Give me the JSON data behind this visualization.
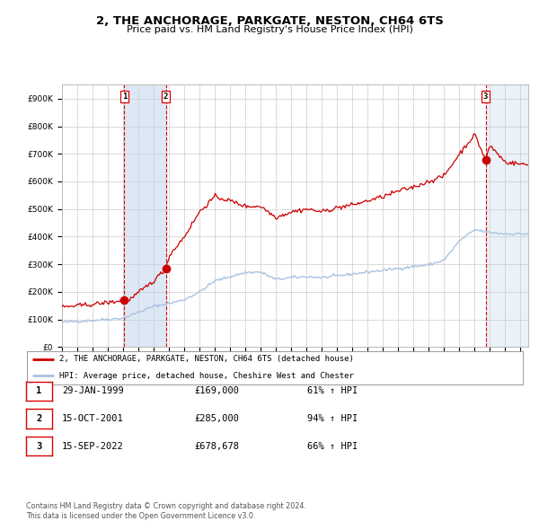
{
  "title": "2, THE ANCHORAGE, PARKGATE, NESTON, CH64 6TS",
  "subtitle": "Price paid vs. HM Land Registry's House Price Index (HPI)",
  "xlim_start": 1995.0,
  "xlim_end": 2025.5,
  "ylim_min": 0,
  "ylim_max": 950000,
  "yticks": [
    0,
    100000,
    200000,
    300000,
    400000,
    500000,
    600000,
    700000,
    800000,
    900000
  ],
  "ytick_labels": [
    "£0",
    "£100K",
    "£200K",
    "£300K",
    "£400K",
    "£500K",
    "£600K",
    "£700K",
    "£800K",
    "£900K"
  ],
  "sale1_date": 1999.08,
  "sale1_price": 169000,
  "sale1_label": "1",
  "sale1_date_str": "29-JAN-1999",
  "sale1_price_str": "£169,000",
  "sale1_hpi_str": "61% ↑ HPI",
  "sale2_date": 2001.79,
  "sale2_price": 285000,
  "sale2_label": "2",
  "sale2_date_str": "15-OCT-2001",
  "sale2_price_str": "£285,000",
  "sale2_hpi_str": "94% ↑ HPI",
  "sale3_date": 2022.71,
  "sale3_price": 678678,
  "sale3_label": "3",
  "sale3_date_str": "15-SEP-2022",
  "sale3_price_str": "£678,678",
  "sale3_hpi_str": "66% ↑ HPI",
  "hpi_line_color": "#aac4e0",
  "price_line_color": "#cc0000",
  "sale_marker_color": "#cc0000",
  "vline_color": "#dd0000",
  "shade_color": "#dce8f5",
  "legend_line1": "2, THE ANCHORAGE, PARKGATE, NESTON, CH64 6TS (detached house)",
  "legend_line2": "HPI: Average price, detached house, Cheshire West and Chester",
  "footnote1": "Contains HM Land Registry data © Crown copyright and database right 2024.",
  "footnote2": "This data is licensed under the Open Government Licence v3.0.",
  "background_color": "#ffffff",
  "grid_color": "#cccccc",
  "title_fontsize": 9.5,
  "subtitle_fontsize": 8.0
}
